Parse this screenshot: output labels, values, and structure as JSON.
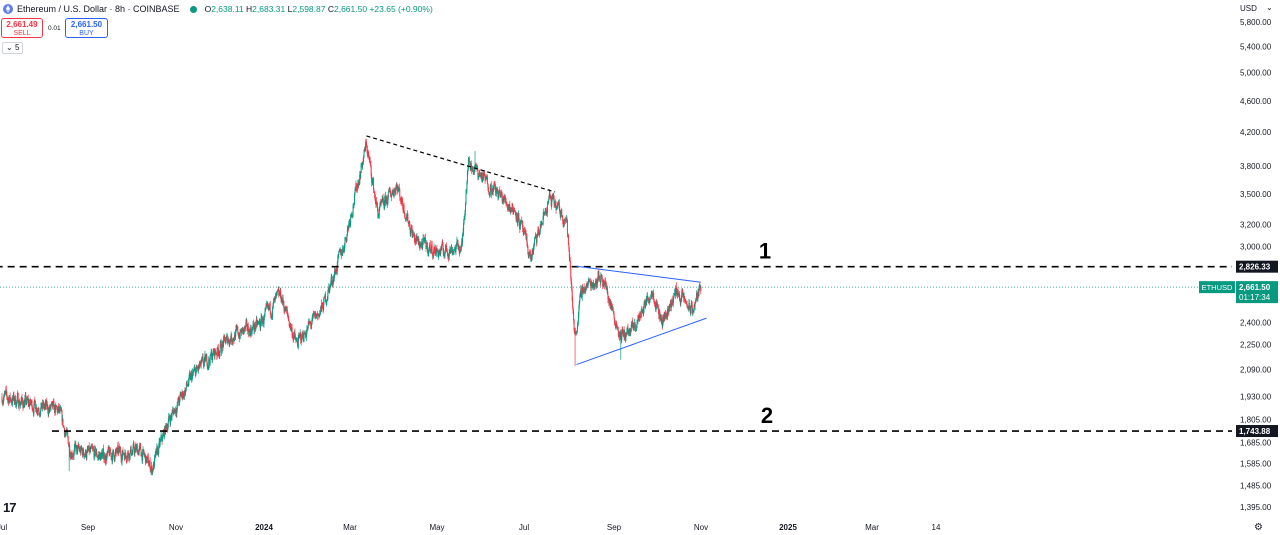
{
  "header": {
    "symbol": "Ethereum / U.S. Dollar · 8h · COINBASE",
    "ohlc": [
      {
        "k": "O",
        "v": "2,638.11"
      },
      {
        "k": "H",
        "v": "2,683.31"
      },
      {
        "k": "L",
        "v": "2,598.87"
      },
      {
        "k": "C",
        "v": "2,661.50"
      }
    ],
    "change": "+23.65 (+0.90%)",
    "sell_price": "2,661.49",
    "sell_label": "SELL",
    "spread": "0.01",
    "buy_price": "2,661.50",
    "buy_label": "BUY",
    "layers": "5",
    "currency": "USD",
    "currency_chevron": "⌄",
    "logo": "17",
    "gear": "⚙"
  },
  "colors": {
    "up": "#089981",
    "down": "#f23645",
    "trendline": "#2962ff",
    "text": "#131722",
    "dotted_price_line": "#089981"
  },
  "chart_data": {
    "type": "candlestick",
    "price_scale": "log",
    "y_ticks": [
      5800,
      5400,
      5000,
      4600,
      4200,
      3800,
      3500,
      3200,
      3000,
      2400,
      2250,
      2090,
      1930,
      1805,
      1685,
      1585,
      1485,
      1395
    ],
    "x_ticks": [
      {
        "label": "Jul",
        "bold": false
      },
      {
        "label": "Sep",
        "bold": false
      },
      {
        "label": "Nov",
        "bold": false
      },
      {
        "label": "2024",
        "bold": true
      },
      {
        "label": "Mar",
        "bold": false
      },
      {
        "label": "May",
        "bold": false
      },
      {
        "label": "Jul",
        "bold": false
      },
      {
        "label": "Sep",
        "bold": false
      },
      {
        "label": "Nov",
        "bold": false
      },
      {
        "label": "2025",
        "bold": true
      },
      {
        "label": "Mar",
        "bold": false
      },
      {
        "label": "14",
        "bold": false
      }
    ],
    "anchors": [
      {
        "d": "2023-07-01",
        "p": 1930
      },
      {
        "d": "2023-08-10",
        "p": 1845
      },
      {
        "d": "2023-08-18",
        "p": 1650
      },
      {
        "d": "2023-09-10",
        "p": 1620
      },
      {
        "d": "2023-10-05",
        "p": 1650
      },
      {
        "d": "2023-10-14",
        "p": 1560
      },
      {
        "d": "2023-10-25",
        "p": 1790
      },
      {
        "d": "2023-11-12",
        "p": 2060
      },
      {
        "d": "2023-12-08",
        "p": 2300
      },
      {
        "d": "2023-12-28",
        "p": 2380
      },
      {
        "d": "2024-01-12",
        "p": 2600
      },
      {
        "d": "2024-01-23",
        "p": 2250
      },
      {
        "d": "2024-02-10",
        "p": 2500
      },
      {
        "d": "2024-02-25",
        "p": 3000
      },
      {
        "d": "2024-03-12",
        "p": 4050
      },
      {
        "d": "2024-03-20",
        "p": 3300
      },
      {
        "d": "2024-04-02",
        "p": 3600
      },
      {
        "d": "2024-04-15",
        "p": 3050
      },
      {
        "d": "2024-05-01",
        "p": 2950
      },
      {
        "d": "2024-05-18",
        "p": 3000
      },
      {
        "d": "2024-05-22",
        "p": 3850
      },
      {
        "d": "2024-06-12",
        "p": 3500
      },
      {
        "d": "2024-06-25",
        "p": 3320
      },
      {
        "d": "2024-07-05",
        "p": 2900
      },
      {
        "d": "2024-07-18",
        "p": 3450
      },
      {
        "d": "2024-07-30",
        "p": 3250
      },
      {
        "d": "2024-08-05",
        "p": 2300
      },
      {
        "d": "2024-08-10",
        "p": 2650
      },
      {
        "d": "2024-08-24",
        "p": 2750
      },
      {
        "d": "2024-09-06",
        "p": 2300
      },
      {
        "d": "2024-09-15",
        "p": 2350
      },
      {
        "d": "2024-09-28",
        "p": 2650
      },
      {
        "d": "2024-10-05",
        "p": 2400
      },
      {
        "d": "2024-10-15",
        "p": 2630
      },
      {
        "d": "2024-10-26",
        "p": 2480
      },
      {
        "d": "2024-11-01",
        "p": 2661.5
      }
    ],
    "spikes": [
      {
        "d": "2023-08-17",
        "low": 1550
      },
      {
        "d": "2024-03-12",
        "high": 4090
      },
      {
        "d": "2024-05-27",
        "high": 3970
      },
      {
        "d": "2024-08-05",
        "low": 2110
      },
      {
        "d": "2024-09-06",
        "low": 2150
      },
      {
        "d": "2024-10-15",
        "high": 2700
      }
    ],
    "levels": [
      {
        "label": "1",
        "price": 2826.33,
        "price_label": "2,826.33",
        "start": "2023-03-01"
      },
      {
        "label": "2",
        "price": 1743.88,
        "price_label": "1,743.88",
        "start": "2023-08-05"
      }
    ],
    "resistance_line": [
      {
        "d": "2024-03-12",
        "p": 4150
      },
      {
        "d": "2024-07-22",
        "p": 3520
      }
    ],
    "triangle_upper": [
      {
        "d": "2024-08-06",
        "p": 2830
      },
      {
        "d": "2024-11-01",
        "p": 2700
      }
    ],
    "triangle_lower": [
      {
        "d": "2024-08-06",
        "p": 2120
      },
      {
        "d": "2024-11-05",
        "p": 2430
      }
    ],
    "current_price": {
      "ticker": "ETHUSD",
      "price": 2661.5,
      "price_label": "2,661.50",
      "countdown": "01:17:34"
    }
  }
}
